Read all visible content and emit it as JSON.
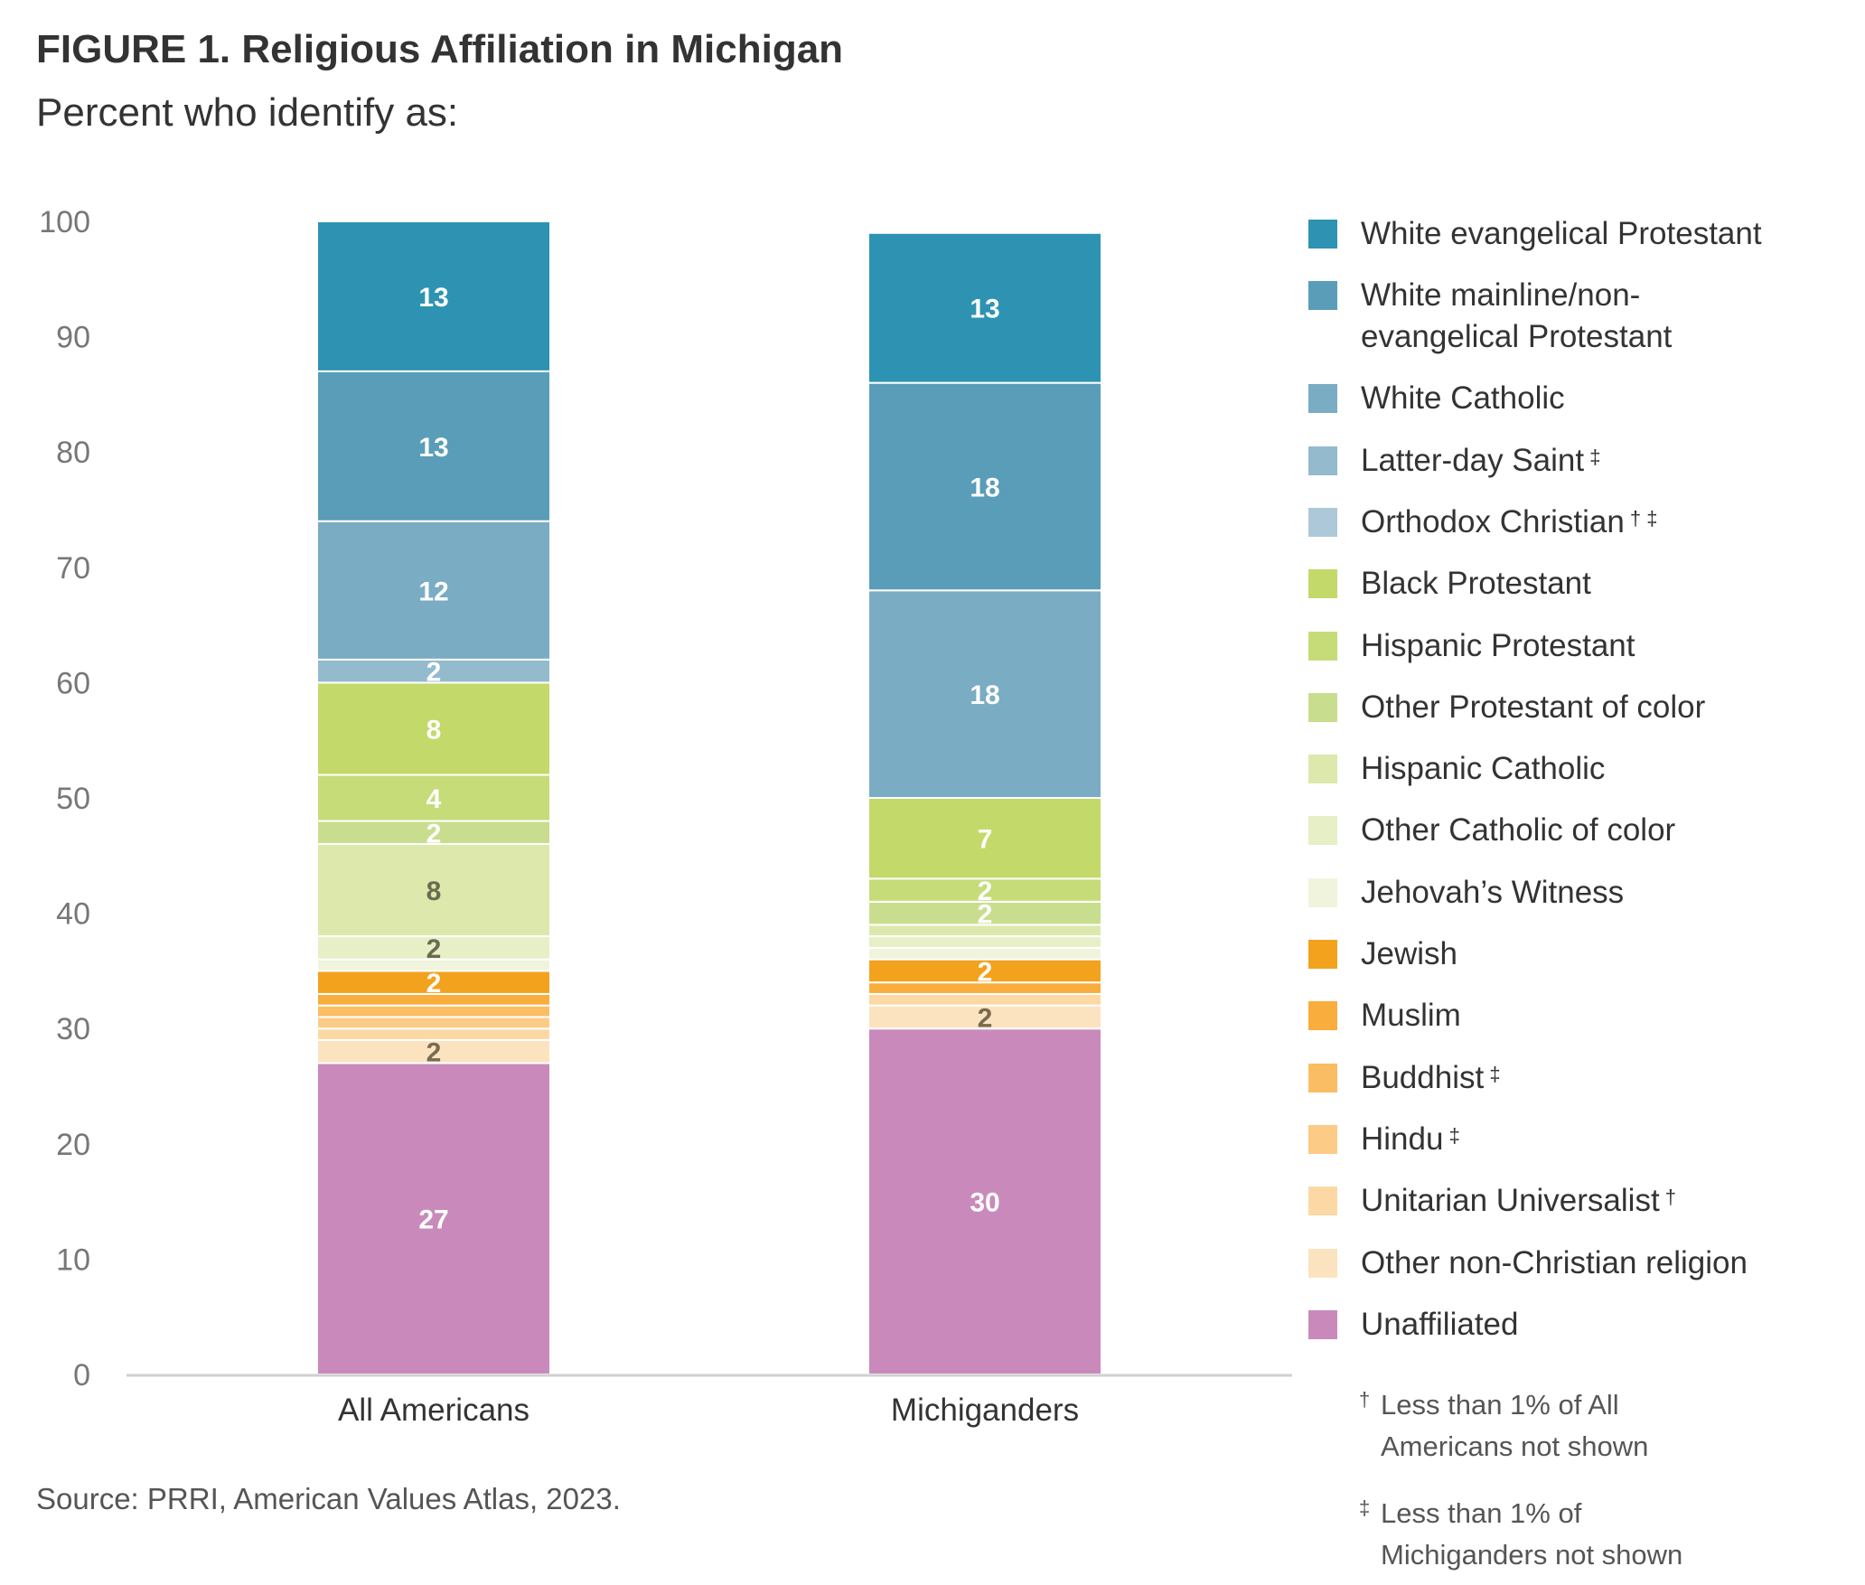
{
  "title": "FIGURE 1. Religious Affiliation in Michigan",
  "subtitle": "Percent who identify as:",
  "source": "Source: PRRI, American Values Atlas, 2023.",
  "notes": [
    {
      "mark": "†",
      "text": "Less than 1% of All\nAmericans not shown"
    },
    {
      "mark": "‡",
      "text": "Less than 1% of\nMichiganders not shown"
    }
  ],
  "chart_data": {
    "type": "bar",
    "stacked": true,
    "categories": [
      "All Americans",
      "Michiganders"
    ],
    "ylim": [
      0,
      100
    ],
    "yticks": [
      "0",
      "10",
      "20",
      "30",
      "40",
      "50",
      "60",
      "70",
      "80",
      "90",
      "100"
    ],
    "grid": false,
    "legend_position": "right",
    "series": [
      {
        "name": "Unaffiliated",
        "color": "#c98abb",
        "values": [
          27,
          30
        ],
        "labels": [
          "27",
          "30"
        ],
        "label_color": "#ffffff"
      },
      {
        "name": "Other non-Christian religion",
        "color": "#fce3c0",
        "values": [
          2,
          2
        ],
        "labels": [
          "2",
          "2"
        ],
        "label_color": "#7a6a50"
      },
      {
        "name": "Unitarian Universalist",
        "mark": "†",
        "color": "#fcd9a4",
        "values": [
          1,
          1
        ],
        "labels": [
          "",
          ""
        ],
        "label_color": "#ffffff"
      },
      {
        "name": "Hindu",
        "mark": "‡",
        "color": "#fccb85",
        "values": [
          1,
          0
        ],
        "labels": [
          "",
          ""
        ],
        "label_color": "#ffffff"
      },
      {
        "name": "Buddhist",
        "mark": "‡",
        "color": "#fbbd63",
        "values": [
          1,
          0
        ],
        "labels": [
          "",
          ""
        ],
        "label_color": "#ffffff"
      },
      {
        "name": "Muslim",
        "color": "#f8ad3c",
        "values": [
          1,
          1
        ],
        "labels": [
          "",
          ""
        ],
        "label_color": "#ffffff"
      },
      {
        "name": "Jewish",
        "color": "#f3a21e",
        "values": [
          2,
          2
        ],
        "labels": [
          "2",
          "2"
        ],
        "label_color": "#ffffff"
      },
      {
        "name": "Jehovah’s Witness",
        "color": "#f0f4dd",
        "values": [
          1,
          1
        ],
        "labels": [
          "",
          ""
        ],
        "label_color": "#ffffff"
      },
      {
        "name": "Other Catholic of color",
        "color": "#e6efc6",
        "values": [
          2,
          1
        ],
        "labels": [
          "2",
          ""
        ],
        "label_color": "#6b6b50"
      },
      {
        "name": "Hispanic Catholic",
        "color": "#dce8ac",
        "values": [
          8,
          1
        ],
        "labels": [
          "8",
          ""
        ],
        "label_color": "#6b6b50"
      },
      {
        "name": "Other Protestant of color",
        "color": "#c8de8e",
        "values": [
          2,
          2
        ],
        "labels": [
          "2",
          "2"
        ],
        "label_color": "#ffffff"
      },
      {
        "name": "Hispanic Protestant",
        "color": "#c5dc78",
        "values": [
          4,
          2
        ],
        "labels": [
          "4",
          "2"
        ],
        "label_color": "#ffffff"
      },
      {
        "name": "Black Protestant",
        "color": "#c3d96a",
        "values": [
          8,
          7
        ],
        "labels": [
          "8",
          "7"
        ],
        "label_color": "#ffffff"
      },
      {
        "name": "Orthodox Christian",
        "mark": "† ‡",
        "color": "#adc8d8",
        "values": [
          0,
          0
        ],
        "labels": [
          "",
          ""
        ],
        "label_color": "#ffffff"
      },
      {
        "name": "Latter-day Saint",
        "mark": "‡",
        "color": "#94bacd",
        "values": [
          2,
          0
        ],
        "labels": [
          "2",
          ""
        ],
        "label_color": "#ffffff"
      },
      {
        "name": "White Catholic",
        "color": "#7aacc3",
        "values": [
          12,
          18
        ],
        "labels": [
          "12",
          "18"
        ],
        "label_color": "#ffffff"
      },
      {
        "name": "White mainline/non-\nevangelical Protestant",
        "color": "#5a9db8",
        "values": [
          13,
          18
        ],
        "labels": [
          "13",
          "18"
        ],
        "label_color": "#ffffff"
      },
      {
        "name": "White evangelical Protestant",
        "color": "#2e93b2",
        "values": [
          13,
          13
        ],
        "labels": [
          "13",
          "13"
        ],
        "label_color": "#ffffff"
      }
    ]
  }
}
